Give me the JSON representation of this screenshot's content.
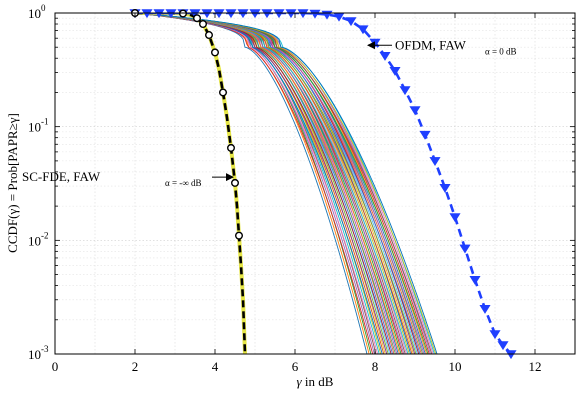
{
  "chart_data": {
    "type": "line",
    "xlabel_symbol": "γ",
    "xlabel_rest": " in dB",
    "ylabel": "CCDF(γ) = Prob[PAPR≥γ]",
    "xlim": [
      0,
      13
    ],
    "ylim": [
      0.001,
      1
    ],
    "yscale": "log",
    "grid": true,
    "x_ticks": [
      0,
      2,
      4,
      6,
      8,
      10,
      12
    ],
    "x_tick_labels": [
      "0",
      "2",
      "4",
      "6",
      "8",
      "10",
      "12"
    ],
    "y_ticks": [
      1,
      0.1,
      0.01,
      0.001
    ],
    "y_tick_labels": [
      {
        "base": "10",
        "exp": "0"
      },
      {
        "base": "10",
        "exp": "-1"
      },
      {
        "base": "10",
        "exp": "-2"
      },
      {
        "base": "10",
        "exp": "-3"
      }
    ],
    "annotations": [
      {
        "main": "OFDM, FAW",
        "sub": "α = 0 dB",
        "x": 8.5,
        "y": 0.52,
        "arrow_to": [
          7.75,
          0.52
        ]
      },
      {
        "main": "SC-FDE, FAW",
        "sub": "α = -∞ dB",
        "x": 0.55,
        "y": 0.036,
        "arrow_to": [
          4.55,
          0.036
        ]
      }
    ],
    "series": [
      {
        "style": "blue-dashed-triangle",
        "color": "#1f3fff",
        "x": [
          2.0,
          2.3,
          2.6,
          2.9,
          3.2,
          3.5,
          3.8,
          4.1,
          4.4,
          4.7,
          5.0,
          5.3,
          5.6,
          5.9,
          6.2,
          6.5,
          6.8,
          7.1,
          7.4,
          7.7,
          8.0,
          8.25,
          8.5,
          8.75,
          9.0,
          9.25,
          9.5,
          9.75,
          10.0,
          10.25,
          10.5,
          10.75,
          11.0,
          11.2,
          11.4
        ],
        "y": [
          1.0,
          1.0,
          1.0,
          1.0,
          1.0,
          1.0,
          1.0,
          1.0,
          1.0,
          1.0,
          1.0,
          1.0,
          1.0,
          1.0,
          1.0,
          0.99,
          0.97,
          0.93,
          0.85,
          0.72,
          0.55,
          0.42,
          0.31,
          0.21,
          0.14,
          0.085,
          0.05,
          0.029,
          0.016,
          0.0085,
          0.0045,
          0.0025,
          0.0015,
          0.0012,
          0.001
        ]
      },
      {
        "style": "black-dashed-circle",
        "color": "#000000",
        "x": [
          2.0,
          2.3,
          2.6,
          2.9,
          3.2,
          3.4,
          3.55,
          3.7,
          3.85,
          4.0,
          4.1,
          4.2,
          4.3,
          4.4,
          4.5,
          4.55,
          4.6,
          4.65,
          4.7,
          4.75
        ],
        "y": [
          1.0,
          1.0,
          1.0,
          1.0,
          0.99,
          0.96,
          0.9,
          0.8,
          0.64,
          0.45,
          0.32,
          0.2,
          0.12,
          0.065,
          0.032,
          0.02,
          0.011,
          0.006,
          0.003,
          0.001
        ]
      }
    ]
  }
}
